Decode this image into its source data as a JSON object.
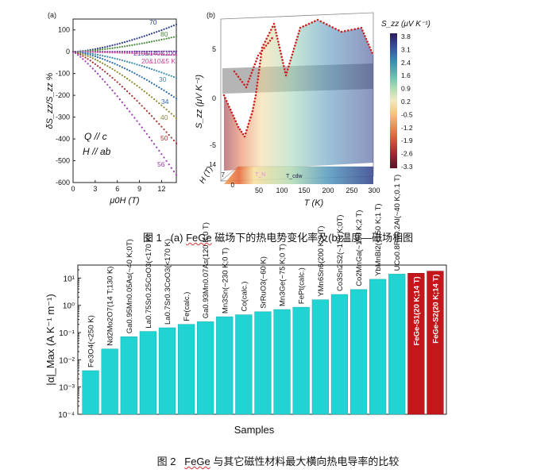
{
  "figure1": {
    "caption_prefix": "图 1",
    "caption_rest_a": "(a) ",
    "caption_fege": "FeGe",
    "caption_rest_b": " 磁场下的热电势变化率及(b)温度—磁场相图",
    "panel_a": {
      "label": "(a)",
      "ylabel": "δS_zz/S_zz %",
      "xlabel": "μ0H (T)",
      "annot1": "Q // c",
      "annot2": "H // ab"
    },
    "panel_b": {
      "label": "(b)",
      "zlabel": "S_zz (μV K⁻¹)",
      "xlabel": "T (K)",
      "ylabel": "H (T)",
      "colorbar_title": "S_zz (μV K⁻¹)",
      "colorbar_ticks": [
        "3.8",
        "3.1",
        "2.4",
        "1.6",
        "0.9",
        "0.2",
        "-0.5",
        "-1.2",
        "-1.9",
        "-2.6",
        "-3.3"
      ],
      "colorbar_colors": [
        "#2e1a5e",
        "#36509a",
        "#3a8ab0",
        "#5ab8b0",
        "#a9dcb0",
        "#f2eac0",
        "#f4c27a",
        "#e98a4f",
        "#d1503a",
        "#9e2532",
        "#5a1228"
      ],
      "temp_ticks": [
        "50",
        "100",
        "150",
        "200",
        "250",
        "300"
      ],
      "h_ticks": [
        "14",
        "7",
        "0"
      ],
      "regions": [
        "T_N",
        "T_cdw"
      ],
      "z_ticks": [
        "-5",
        "0",
        "5"
      ]
    }
  },
  "chart_data": [
    {
      "type": "line",
      "panel": "(a)",
      "xlabel": "μ0H (T)",
      "ylabel": "δS_zz/S_zz %",
      "xlim": [
        0,
        14
      ],
      "ylim": [
        -600,
        150
      ],
      "xticks": [
        0,
        3,
        6,
        9,
        12
      ],
      "yticks": [
        100,
        0,
        -100,
        -200,
        -300,
        -400,
        -500,
        -600
      ],
      "series": [
        {
          "name": "70",
          "color": "#2a3a8c",
          "x": [
            0,
            14
          ],
          "y": [
            0,
            125
          ],
          "curve": 1.5
        },
        {
          "name": "80",
          "color": "#4a8a3a",
          "x": [
            0,
            14
          ],
          "y": [
            0,
            70
          ],
          "curve": 1.5
        },
        {
          "name": "210&140&100",
          "color": "#6a3aa0",
          "x": [
            0,
            14
          ],
          "y": [
            0,
            2
          ],
          "curve": 1.5
        },
        {
          "name": "20&10&5 K",
          "color": "#c84a9a",
          "x": [
            0,
            14
          ],
          "y": [
            0,
            -15
          ],
          "curve": 1.5
        },
        {
          "name": "30",
          "color": "#3a8aaa",
          "x": [
            0,
            14
          ],
          "y": [
            0,
            -120
          ],
          "curve": 1.5
        },
        {
          "name": "34",
          "color": "#2a6ab0",
          "x": [
            0,
            14
          ],
          "y": [
            0,
            -215
          ],
          "curve": 1.5
        },
        {
          "name": "40",
          "color": "#8a8a30",
          "x": [
            0,
            14
          ],
          "y": [
            0,
            -305
          ],
          "curve": 1.4
        },
        {
          "name": "50",
          "color": "#a83030",
          "x": [
            0,
            14
          ],
          "y": [
            0,
            -420
          ],
          "curve": 1.3
        },
        {
          "name": "56",
          "color": "#9a3ab0",
          "x": [
            0,
            14
          ],
          "y": [
            0,
            -565
          ],
          "curve": 1.2
        }
      ]
    },
    {
      "type": "bar",
      "title": "",
      "xlabel": "Samples",
      "ylabel": "|α|_Max (A K⁻¹ m⁻¹)",
      "yscale": "log",
      "ylim": [
        0.0001,
        30
      ],
      "yticks": [
        "10¹",
        "10⁰",
        "10⁻¹",
        "10⁻²",
        "10⁻³",
        "10⁻⁴"
      ],
      "categories": [
        "Fe3O4(<250 K)",
        "Nd2Mo2O7(14 T;130 K)",
        "Ga0.95Mn0.05As(~40 K;0T)",
        "La0.75Sr0.25CoO3(<170 K)",
        "La0.7Sr0.3CoO3(<170 K)",
        "Fe(calc.)",
        "Ga0.93Mn0.07As(120 K;0 T)",
        "Mn3Sn(~230 K;0 T)",
        "Co(calc.)",
        "SrRuO3(~60 K)",
        "Mn3Ge(~75 K;0 T)",
        "FePt(calc.)",
        "YMn6Sn6(200 K;9 T)",
        "Co3Sn2S2(~170 K;0T)",
        "Co2MnGa(~150 K;2 T)",
        "YbMnBi2(<150 K;1 T)",
        "UCo0.8Ru0.2Al(~40 K;0.1 T)",
        "FeGe-S1(20 K;14 T)",
        "FeGe-S2(20 K;14 T)"
      ],
      "values": [
        0.004,
        0.025,
        0.07,
        0.11,
        0.15,
        0.2,
        0.25,
        0.38,
        0.45,
        0.58,
        0.7,
        0.85,
        1.6,
        2.5,
        3.8,
        9.0,
        14.0,
        15.0,
        18.0
      ],
      "highlight": [
        false,
        false,
        false,
        false,
        false,
        false,
        false,
        false,
        false,
        false,
        false,
        false,
        false,
        false,
        false,
        false,
        false,
        true,
        true
      ],
      "bar_color": "#22d3d3",
      "highlight_color": "#c4171c"
    }
  ],
  "figure2": {
    "caption_prefix": "图 2",
    "caption_fege": "FeGe",
    "caption_rest": " 与其它磁性材料最大横向热电导率的比较"
  }
}
